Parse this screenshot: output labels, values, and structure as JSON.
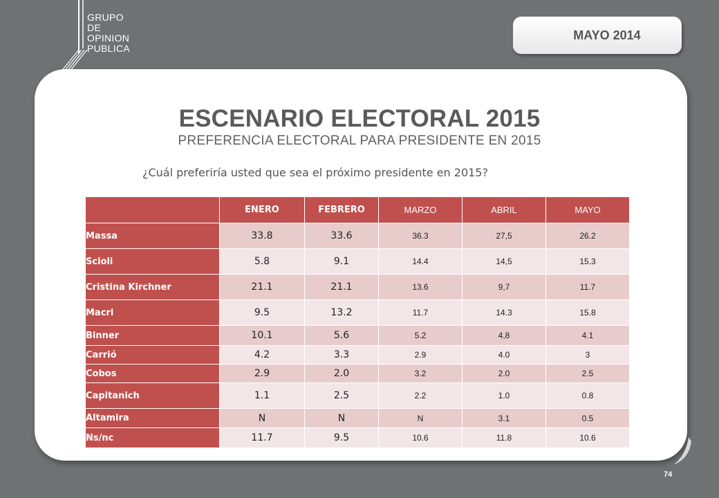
{
  "logo": {
    "lines": [
      "GRUPO",
      "DE",
      "OPINION",
      "PUBLICA"
    ]
  },
  "date_badge": "MAYO 2014",
  "title": "ESCENARIO ELECTORAL 2015",
  "subtitle": "PREFERENCIA ELECTORAL PARA PRESIDENTE EN 2015",
  "question": "¿Cuál preferiría usted que sea el próximo presidente en 2015?",
  "table": {
    "headers": [
      "ENERO",
      "FEBRERO",
      "MARZO",
      "ABRIL",
      "MAYO"
    ],
    "rows": [
      {
        "name": "Massa",
        "values": [
          "33.8",
          "33.6",
          "36.3",
          "27,5",
          "26.2"
        ]
      },
      {
        "name": "Scioli",
        "values": [
          "5.8",
          "9.1",
          "14.4",
          "14,5",
          "15.3"
        ]
      },
      {
        "name": "Cristina Kirchner",
        "values": [
          "21.1",
          "21.1",
          "13.6",
          "9,7",
          "11.7"
        ]
      },
      {
        "name": "Macri",
        "values": [
          "9.5",
          "13.2",
          "11.7",
          "14.3",
          "15.8"
        ]
      },
      {
        "name": "Binner",
        "values": [
          "10.1",
          "5.6",
          "5.2",
          "4,8",
          "4.1"
        ]
      },
      {
        "name": "Carrió",
        "values": [
          "4.2",
          "3.3",
          "2.9",
          "4.0",
          "3"
        ]
      },
      {
        "name": "Cobos",
        "values": [
          "2.9",
          "2.0",
          "3.2",
          "2.0",
          "2.5"
        ]
      },
      {
        "name": "Capitanich",
        "values": [
          "1.1",
          "2.5",
          "2.2",
          "1.0",
          "0.8"
        ]
      },
      {
        "name": "Altamira",
        "values": [
          "N",
          "N",
          "N",
          "3.1",
          "0.5"
        ]
      },
      {
        "name": "Ns/nc",
        "values": [
          "11.7",
          "9.5",
          "10.6",
          "11.8",
          "10.6"
        ]
      }
    ]
  },
  "page_number": "74",
  "colors": {
    "background": "#6e7272",
    "header_red": "#c0504d",
    "row_dark": "#e8cccc",
    "row_light": "#f3e6e6"
  }
}
